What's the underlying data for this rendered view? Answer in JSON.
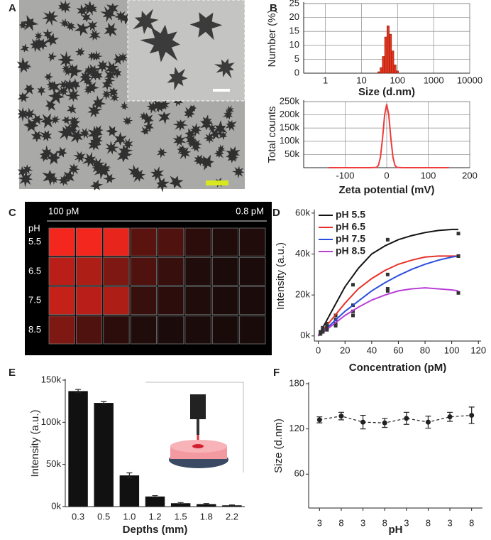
{
  "image_panel": {
    "panel": "A"
  },
  "chart_data": [
    {
      "type": "histogram",
      "panel": "B",
      "xlabel": "Size (d.nm)",
      "ylabel": "Number (%)",
      "xscale": "log",
      "grid": true,
      "color": "#e8361e",
      "bins": [
        28.2,
        32.7,
        37.8,
        43.8,
        50.7,
        58.8,
        68.1,
        78.8,
        91.3,
        105.7
      ],
      "values": [
        0.5,
        2,
        6,
        13,
        17,
        14,
        8,
        3,
        0.8
      ],
      "xlim": [
        0.25,
        10000
      ],
      "xticks": [
        1,
        10,
        100,
        1000,
        10000
      ],
      "ylim": [
        0,
        25
      ],
      "yticks": [
        0,
        5,
        10,
        15,
        20,
        25
      ]
    },
    {
      "type": "line",
      "xlabel": "Zeta potential (mV)",
      "ylabel": "Total counts",
      "grid": true,
      "color": "#ee3b3b",
      "x": [
        -140,
        -40,
        -25,
        -20,
        -15,
        -10,
        -5,
        0,
        5,
        10,
        15,
        20,
        25,
        40,
        150
      ],
      "values": [
        0,
        0,
        1000,
        8000,
        40000,
        110000,
        200000,
        240000,
        200000,
        110000,
        40000,
        8000,
        1000,
        0,
        0
      ],
      "xlim": [
        -200,
        200
      ],
      "xticks": [
        -100,
        0,
        100,
        200
      ],
      "ylim": [
        0,
        250000
      ],
      "yticks": [
        {
          "value": 50000,
          "label": "50k"
        },
        {
          "value": 100000,
          "label": "100k"
        },
        {
          "value": 150000,
          "label": "150k"
        },
        {
          "value": 200000,
          "label": "200k"
        },
        {
          "value": 250000,
          "label": "250k"
        }
      ]
    },
    {
      "type": "scatter",
      "panel": "D",
      "xlabel": "Concentration (pM)",
      "ylabel": "Intensity (a.u.)",
      "x": [
        1.6,
        3.3,
        6.5,
        13,
        26,
        52,
        105
      ],
      "fit_x": [
        0,
        10,
        20,
        30,
        40,
        50,
        60,
        70,
        80,
        90,
        100,
        105
      ],
      "series": [
        {
          "name": "pH 5.5",
          "color": "#111111",
          "values": [
            2000,
            4000,
            6000,
            10000,
            25000,
            47000,
            50000
          ],
          "fit": [
            0,
            12000,
            24000,
            33000,
            40000,
            44000,
            47000,
            49000,
            50500,
            51500,
            52000,
            52000
          ]
        },
        {
          "name": "pH 6.5",
          "color": "#e8302a",
          "values": [
            2000,
            3000,
            5000,
            8000,
            15000,
            30000,
            39000
          ],
          "fit": [
            0,
            8000,
            16000,
            23000,
            28000,
            32000,
            35000,
            37000,
            38500,
            39000,
            39000,
            39000
          ]
        },
        {
          "name": "pH 7.5",
          "color": "#2a4fe0",
          "values": [
            1000,
            2000,
            4000,
            6000,
            12000,
            23000,
            39000
          ],
          "fit": [
            0,
            6000,
            12000,
            17000,
            22000,
            26000,
            29500,
            32500,
            35000,
            37000,
            38500,
            39000
          ]
        },
        {
          "name": "pH 8.5",
          "color": "#b73fd6",
          "values": [
            1000,
            2000,
            3000,
            5000,
            10000,
            22000,
            21000
          ],
          "fit": [
            0,
            5000,
            10000,
            14000,
            17500,
            20000,
            22000,
            23000,
            23500,
            23000,
            22500,
            22000
          ]
        }
      ],
      "xlim": [
        -3,
        122
      ],
      "xticks": [
        0,
        20,
        40,
        60,
        80,
        100,
        120
      ],
      "ylim": [
        -2500,
        61000
      ],
      "yticks": [
        {
          "value": 0,
          "label": "0k"
        },
        {
          "value": 20000,
          "label": "20k"
        },
        {
          "value": 40000,
          "label": "40k"
        },
        {
          "value": 60000,
          "label": "60k"
        }
      ]
    },
    {
      "type": "bar",
      "panel": "E",
      "xlabel": "Depths (mm)",
      "ylabel": "Intensity (a.u.)",
      "color": "#111111",
      "categories": [
        "0.3",
        "0.5",
        "1.0",
        "1.2",
        "1.5",
        "1.8",
        "2.2"
      ],
      "values": [
        137000,
        123000,
        37000,
        12000,
        4000,
        3000,
        1500
      ],
      "errors": [
        2000,
        1500,
        3000,
        1000,
        800,
        600,
        500
      ],
      "ylim": [
        0,
        150000
      ],
      "yticks": [
        {
          "value": 0,
          "label": "0k"
        },
        {
          "value": 50000,
          "label": "50k"
        },
        {
          "value": 100000,
          "label": "100k"
        },
        {
          "value": 150000,
          "label": "150k"
        }
      ]
    },
    {
      "type": "line",
      "panel": "F",
      "xlabel": "pH",
      "ylabel": "Size (d.nm)",
      "color": "#222222",
      "categories": [
        "3",
        "8",
        "3",
        "8",
        "3",
        "8",
        "3",
        "8"
      ],
      "values": [
        132,
        137,
        129,
        128,
        134,
        129,
        136,
        138
      ],
      "errors": [
        4,
        5,
        9,
        6,
        8,
        8,
        6,
        11
      ],
      "ylim": [
        15,
        180
      ],
      "yticks": [
        60,
        120,
        180
      ]
    },
    {
      "type": "heatmap",
      "panel": "C",
      "ylabel": "pH",
      "x_start_label": "100 pM",
      "x_end_label": "0.8 pM",
      "rows": [
        "5.5",
        "6.5",
        "7.5",
        "8.5"
      ],
      "values": [
        [
          0.95,
          0.95,
          0.9,
          0.3,
          0.25,
          0.1,
          0.05,
          0.05
        ],
        [
          0.7,
          0.65,
          0.45,
          0.25,
          0.15,
          0.05,
          0.03,
          0.03
        ],
        [
          0.75,
          0.7,
          0.65,
          0.15,
          0.1,
          0.05,
          0.03,
          0.03
        ],
        [
          0.45,
          0.25,
          0.1,
          0.05,
          0.03,
          0.03,
          0.02,
          0.02
        ]
      ]
    }
  ]
}
